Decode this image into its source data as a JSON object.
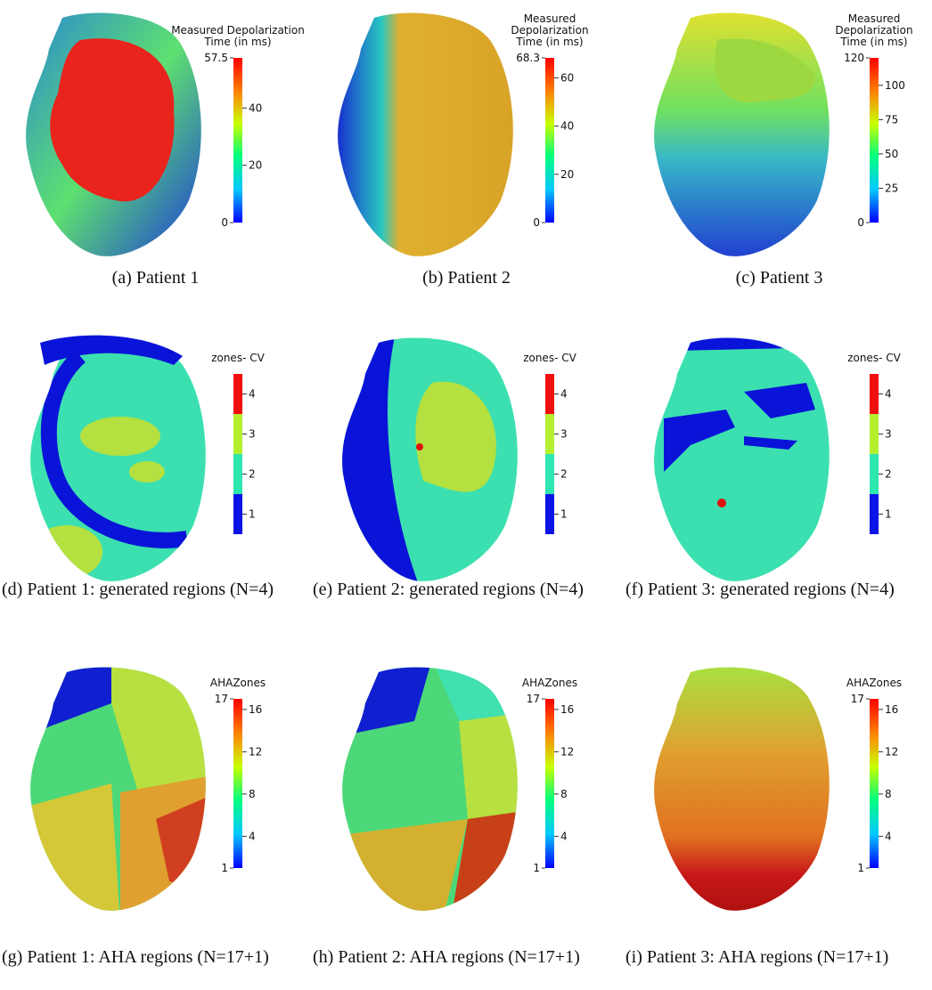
{
  "panels": [
    {
      "caption": "(a) Patient 1",
      "colorbar": {
        "title": [
          "Measured Depolarization",
          "Time (in ms)"
        ],
        "lim": [
          0,
          57.5
        ],
        "ticks": [
          20,
          40
        ],
        "end_labels": true,
        "colors": [
          "#0000ff",
          "#00c8ff",
          "#00ff80",
          "#c8ff00",
          "#ff8000",
          "#ff0000"
        ],
        "scale": "gradient"
      }
    },
    {
      "caption": "(b) Patient 2",
      "colorbar": {
        "title": [
          "Measured",
          "Depolarization",
          "Time (in ms)"
        ],
        "lim": [
          0,
          68.3
        ],
        "ticks": [
          20,
          40,
          60
        ],
        "end_labels": true,
        "colors": [
          "#0000ff",
          "#00c8ff",
          "#00ff80",
          "#c8ff00",
          "#ff8000",
          "#ff0000"
        ],
        "scale": "gradient"
      }
    },
    {
      "caption": "(c) Patient 3",
      "colorbar": {
        "title": [
          "Measured",
          "Depolarization",
          "Time (in ms)"
        ],
        "lim": [
          0,
          120
        ],
        "ticks": [
          25,
          50,
          75,
          100
        ],
        "end_labels": true,
        "colors": [
          "#0000ff",
          "#00c8ff",
          "#00ff80",
          "#c8ff00",
          "#ff8000",
          "#ff0000"
        ],
        "scale": "gradient"
      }
    },
    {
      "caption": "(d) Patient 1: generated regions (N=4)",
      "colorbar": {
        "title": [
          "zones- CV"
        ],
        "lim": [
          0.5,
          4.5
        ],
        "ticks": [
          1,
          2,
          3,
          4
        ],
        "end_labels": false,
        "colors": [
          "#0a14e6",
          "#2ee6b0",
          "#b4f030",
          "#f01010"
        ],
        "scale": "steps"
      }
    },
    {
      "caption": "(e) Patient 2: generated regions (N=4)",
      "colorbar": {
        "title": [
          "zones- CV"
        ],
        "lim": [
          0.5,
          4.5
        ],
        "ticks": [
          1,
          2,
          3,
          4
        ],
        "end_labels": false,
        "colors": [
          "#0a14e6",
          "#2ee6b0",
          "#b4f030",
          "#f01010"
        ],
        "scale": "steps"
      }
    },
    {
      "caption": "(f) Patient 3: generated regions (N=4)",
      "colorbar": {
        "title": [
          "zones- CV"
        ],
        "lim": [
          0.5,
          4.5
        ],
        "ticks": [
          1,
          2,
          3,
          4
        ],
        "end_labels": false,
        "colors": [
          "#0a14e6",
          "#2ee6b0",
          "#b4f030",
          "#f01010"
        ],
        "scale": "steps"
      }
    },
    {
      "caption": "(g) Patient 1: AHA regions (N=17+1)",
      "colorbar": {
        "title": [
          "AHAZones"
        ],
        "lim": [
          1,
          17
        ],
        "ticks": [
          4,
          8,
          12,
          16
        ],
        "end_labels": true,
        "colors": [
          "#0000ff",
          "#00c8ff",
          "#00ff80",
          "#c8ff00",
          "#ff8000",
          "#ff0000"
        ],
        "scale": "gradient"
      }
    },
    {
      "caption": "(h) Patient 2: AHA regions (N=17+1)",
      "colorbar": {
        "title": [
          "AHAZones"
        ],
        "lim": [
          1,
          17
        ],
        "ticks": [
          4,
          8,
          12,
          16
        ],
        "end_labels": true,
        "colors": [
          "#0000ff",
          "#00c8ff",
          "#00ff80",
          "#c8ff00",
          "#ff8000",
          "#ff0000"
        ],
        "scale": "gradient"
      }
    },
    {
      "caption": "(i) Patient 3: AHA regions (N=17+1)",
      "colorbar": {
        "title": [
          "AHAZones"
        ],
        "lim": [
          1,
          17
        ],
        "ticks": [
          4,
          8,
          12,
          16
        ],
        "end_labels": true,
        "colors": [
          "#0000ff",
          "#00c8ff",
          "#00ff80",
          "#c8ff00",
          "#ff8000",
          "#ff0000"
        ],
        "scale": "gradient"
      }
    }
  ]
}
